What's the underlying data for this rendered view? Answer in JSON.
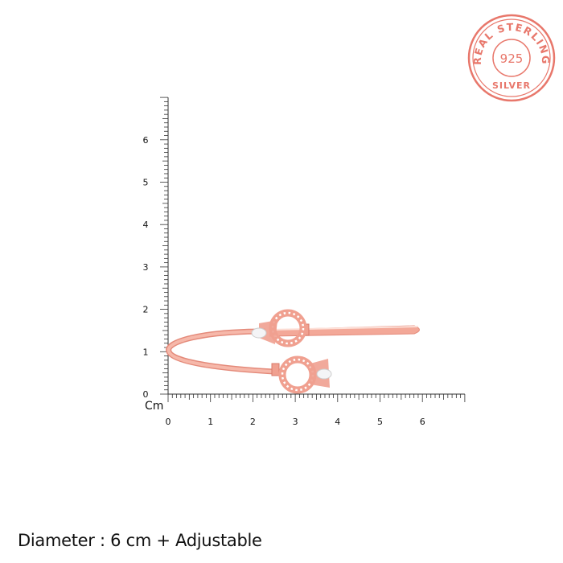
{
  "seal": {
    "text_top": "REAL STERLING",
    "text_center": "925",
    "text_bottom": "SILVER",
    "color": "#e8776b"
  },
  "ruler": {
    "unit": "Cm",
    "x_labels": [
      "0",
      "1",
      "2",
      "3",
      "4",
      "5",
      "6"
    ],
    "y_labels": [
      "0",
      "1",
      "2",
      "3",
      "4",
      "5",
      "6"
    ],
    "max_cm": 7
  },
  "product": {
    "metal_color": "#f0a090",
    "stone_color": "#f4f4f6"
  },
  "caption": "Diameter : 6 cm + Adjustable"
}
